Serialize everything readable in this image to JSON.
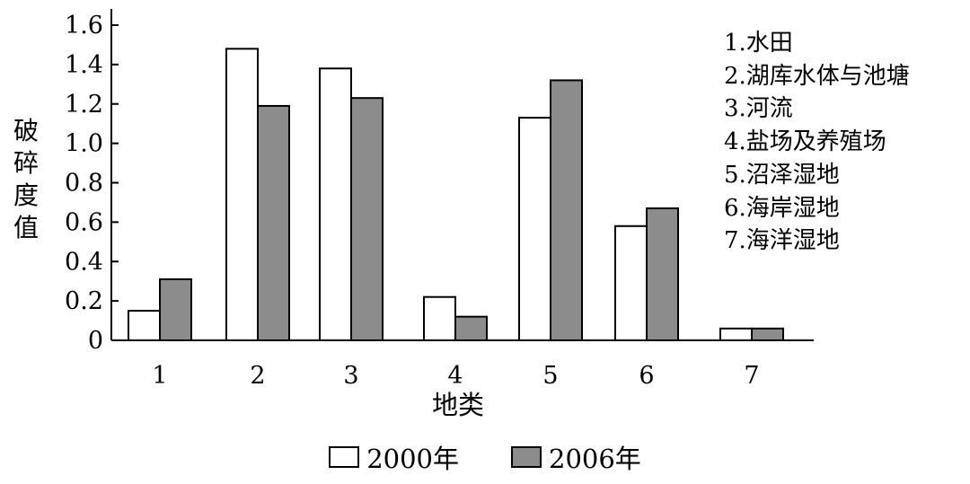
{
  "chart_data": {
    "type": "bar",
    "categories": [
      "1",
      "2",
      "3",
      "4",
      "5",
      "6",
      "7"
    ],
    "series": [
      {
        "name": "2000年",
        "values": [
          0.15,
          1.48,
          1.38,
          0.22,
          1.13,
          0.58,
          0.06
        ],
        "color": "#ffffff"
      },
      {
        "name": "2006年",
        "values": [
          0.31,
          1.19,
          1.23,
          0.12,
          1.32,
          0.67,
          0.06
        ],
        "color": "#8c8c8c"
      }
    ],
    "ylabel": "破碎度值",
    "xlabel": "地类",
    "ylim": [
      0,
      1.6
    ],
    "yticks": [
      "0",
      "0.2",
      "0.4",
      "0.6",
      "0.8",
      "1.0",
      "1.2",
      "1.4",
      "1.6"
    ],
    "category_names": [
      "1.水田",
      "2.湖库水体与池塘",
      "3.河流",
      "4.盐场及养殖场",
      "5.沼泽湿地",
      "6.海岸湿地",
      "7.海洋湿地"
    ],
    "grid": false,
    "legend": "bottom"
  }
}
